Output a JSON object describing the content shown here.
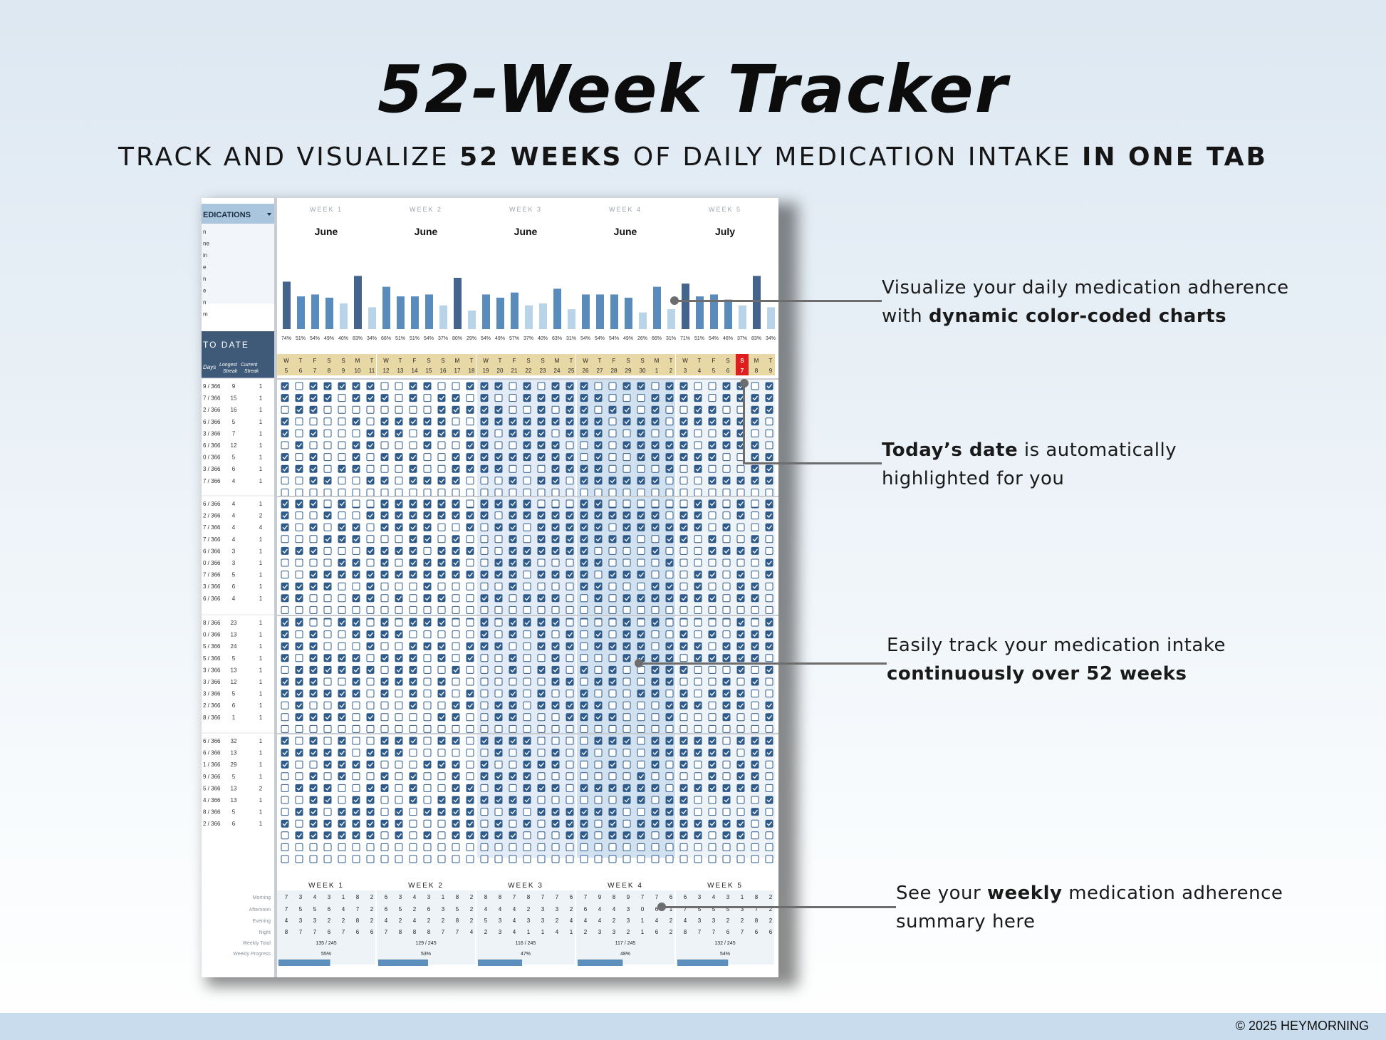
{
  "header": {
    "title": "52-Week Tracker",
    "subtitle_parts": [
      "TRACK AND VISUALIZE ",
      "52 WEEKS",
      " OF DAILY MEDICATION INTAKE ",
      "IN ONE TAB"
    ]
  },
  "callouts": [
    {
      "line1": "Visualize your daily medication adherence",
      "line2_pre": "with ",
      "line2_bold": "dynamic color-coded charts"
    },
    {
      "bold": "Today’s date",
      "rest": " is automatically",
      "line2": "highlighted for you"
    },
    {
      "line1": "Easily track your medication  intake",
      "line2_bold": "continuously over 52 weeks"
    },
    {
      "pre": "See your ",
      "bold": "weekly",
      "rest": " medication adherence",
      "line2": "summary here"
    }
  ],
  "footer": {
    "copyright": "© 2025 HEYMORNING"
  },
  "sheet": {
    "medications_header": "EDICATIONS",
    "med_initials": [
      "n",
      "ne",
      "in",
      "e",
      "n",
      "e",
      "n",
      "m"
    ],
    "to_date_header": "TO DATE",
    "col_days": "Days",
    "col_longest": "Longest Streak",
    "col_current": "Current Streak",
    "weeks": [
      {
        "label": "WEEK 1",
        "month": "June",
        "percents": [
          "74%",
          "51%",
          "54%",
          "49%",
          "40%",
          "83%",
          "34%"
        ],
        "bars": [
          74,
          51,
          54,
          49,
          40,
          83,
          34
        ],
        "days": [
          "W",
          "T",
          "F",
          "S",
          "S",
          "M",
          "T"
        ],
        "dates": [
          "5",
          "6",
          "7",
          "8",
          "9",
          "10",
          "11"
        ],
        "summary": {
          "morning": [
            "7",
            "3",
            "4",
            "3",
            "1",
            "8",
            "2"
          ],
          "afternoon": [
            "7",
            "5",
            "5",
            "6",
            "4",
            "7",
            "2"
          ],
          "evening": [
            "4",
            "3",
            "3",
            "2",
            "2",
            "8",
            "2"
          ],
          "night": [
            "8",
            "7",
            "7",
            "6",
            "7",
            "6",
            "6"
          ],
          "total": "135 / 245",
          "progress": "55%",
          "progress_value": 55
        }
      },
      {
        "label": "WEEK 2",
        "month": "June",
        "percents": [
          "66%",
          "51%",
          "51%",
          "54%",
          "37%",
          "80%",
          "29%"
        ],
        "bars": [
          66,
          51,
          51,
          54,
          37,
          80,
          29
        ],
        "days": [
          "W",
          "T",
          "F",
          "S",
          "S",
          "M",
          "T"
        ],
        "dates": [
          "12",
          "13",
          "14",
          "15",
          "16",
          "17",
          "18"
        ],
        "summary": {
          "morning": [
            "6",
            "3",
            "4",
            "3",
            "1",
            "8",
            "2"
          ],
          "afternoon": [
            "6",
            "5",
            "2",
            "6",
            "3",
            "5",
            "2"
          ],
          "evening": [
            "4",
            "2",
            "4",
            "2",
            "2",
            "8",
            "2"
          ],
          "night": [
            "7",
            "8",
            "8",
            "8",
            "7",
            "7",
            "4"
          ],
          "total": "129 / 245",
          "progress": "53%",
          "progress_value": 53
        }
      },
      {
        "label": "WEEK 3",
        "month": "June",
        "percents": [
          "54%",
          "49%",
          "57%",
          "37%",
          "40%",
          "63%",
          "31%"
        ],
        "bars": [
          54,
          49,
          57,
          37,
          40,
          63,
          31
        ],
        "days": [
          "W",
          "T",
          "F",
          "S",
          "S",
          "M",
          "T"
        ],
        "dates": [
          "19",
          "20",
          "21",
          "22",
          "23",
          "24",
          "25"
        ],
        "summary": {
          "morning": [
            "8",
            "8",
            "7",
            "8",
            "7",
            "7",
            "6"
          ],
          "afternoon": [
            "4",
            "4",
            "4",
            "2",
            "3",
            "3",
            "2"
          ],
          "evening": [
            "5",
            "3",
            "4",
            "3",
            "3",
            "2",
            "4"
          ],
          "night": [
            "2",
            "3",
            "4",
            "1",
            "1",
            "4",
            "1"
          ],
          "total": "116 / 245",
          "progress": "47%",
          "progress_value": 47
        }
      },
      {
        "label": "WEEK 4",
        "month": "June",
        "percents": [
          "54%",
          "54%",
          "54%",
          "49%",
          "26%",
          "66%",
          "31%"
        ],
        "bars": [
          54,
          54,
          54,
          49,
          26,
          66,
          31
        ],
        "days": [
          "W",
          "T",
          "F",
          "S",
          "S",
          "M",
          "T"
        ],
        "dates": [
          "26",
          "27",
          "28",
          "29",
          "30",
          "1",
          "2"
        ],
        "summary": {
          "morning": [
            "7",
            "9",
            "8",
            "9",
            "7",
            "7",
            "6"
          ],
          "afternoon": [
            "6",
            "4",
            "4",
            "3",
            "0",
            "6",
            "1"
          ],
          "evening": [
            "4",
            "4",
            "2",
            "3",
            "1",
            "4",
            "2"
          ],
          "night": [
            "2",
            "3",
            "3",
            "2",
            "1",
            "6",
            "2"
          ],
          "total": "117 / 245",
          "progress": "48%",
          "progress_value": 48
        }
      },
      {
        "label": "WEEK 5",
        "month": "July",
        "percents": [
          "71%",
          "51%",
          "54%",
          "46%",
          "37%",
          "83%",
          "34%"
        ],
        "bars": [
          71,
          51,
          54,
          46,
          37,
          83,
          34
        ],
        "days": [
          "W",
          "T",
          "F",
          "S",
          "S",
          "M",
          "T"
        ],
        "dates": [
          "3",
          "4",
          "5",
          "6",
          "7",
          "8",
          "9"
        ],
        "summary": {
          "morning": [
            "6",
            "3",
            "4",
            "3",
            "1",
            "8",
            "2"
          ],
          "afternoon": [
            "7",
            "5",
            "5",
            "5",
            "3",
            "7",
            "2"
          ],
          "evening": [
            "4",
            "3",
            "3",
            "2",
            "2",
            "8",
            "2"
          ],
          "night": [
            "8",
            "7",
            "7",
            "6",
            "7",
            "6",
            "6"
          ],
          "total": "132 / 245",
          "progress": "54%",
          "progress_value": 54
        }
      }
    ],
    "today_index": 32,
    "summary_labels": [
      "Morning",
      "Afternoon",
      "Evening",
      "Night",
      "Weekly Total",
      "Weekly Progress"
    ],
    "stat_groups": [
      {
        "rows": [
          [
            "9 / 366",
            "9",
            "1"
          ],
          [
            "7 / 366",
            "15",
            "1"
          ],
          [
            "2 / 366",
            "16",
            "1"
          ],
          [
            "6 / 366",
            "5",
            "1"
          ],
          [
            "3 / 366",
            "7",
            "1"
          ],
          [
            "6 / 366",
            "12",
            "1"
          ],
          [
            "0 / 366",
            "5",
            "1"
          ],
          [
            "3 / 366",
            "6",
            "1"
          ],
          [
            "7 / 366",
            "4",
            "1"
          ]
        ]
      },
      {
        "rows": [
          [
            "6 / 366",
            "4",
            "1"
          ],
          [
            "2 / 366",
            "4",
            "2"
          ],
          [
            "7 / 366",
            "4",
            "4"
          ],
          [
            "7 / 366",
            "4",
            "1"
          ],
          [
            "6 / 366",
            "3",
            "1"
          ],
          [
            "0 / 366",
            "3",
            "1"
          ],
          [
            "7 / 366",
            "5",
            "1"
          ],
          [
            "3 / 366",
            "6",
            "1"
          ],
          [
            "6 / 366",
            "4",
            "1"
          ]
        ]
      },
      {
        "rows": [
          [
            "8 / 366",
            "23",
            "1"
          ],
          [
            "0 / 366",
            "13",
            "1"
          ],
          [
            "5 / 366",
            "24",
            "1"
          ],
          [
            "5 / 366",
            "5",
            "1"
          ],
          [
            "3 / 366",
            "13",
            "1"
          ],
          [
            "3 / 366",
            "12",
            "1"
          ],
          [
            "3 / 366",
            "5",
            "1"
          ],
          [
            "2 / 366",
            "6",
            "1"
          ],
          [
            "8 / 366",
            "1",
            "1"
          ]
        ]
      },
      {
        "rows": [
          [
            "6 / 366",
            "32",
            "1"
          ],
          [
            "6 / 366",
            "13",
            "1"
          ],
          [
            "1 / 366",
            "29",
            "1"
          ],
          [
            "9 / 366",
            "5",
            "1"
          ],
          [
            "5 / 366",
            "13",
            "2"
          ],
          [
            "4 / 366",
            "13",
            "1"
          ],
          [
            "8 / 366",
            "5",
            "1"
          ],
          [
            "2 / 366",
            "6",
            "1"
          ]
        ]
      }
    ]
  },
  "colors": {
    "bar_dark": "#44648d",
    "bar_mid": "#5a8bbd",
    "bar_light": "#b9d3e8",
    "check": "#2f5b8a",
    "header_gold": "#e8d8a6",
    "today_red": "#e01e1e",
    "stats_header": "#3f5a78"
  }
}
